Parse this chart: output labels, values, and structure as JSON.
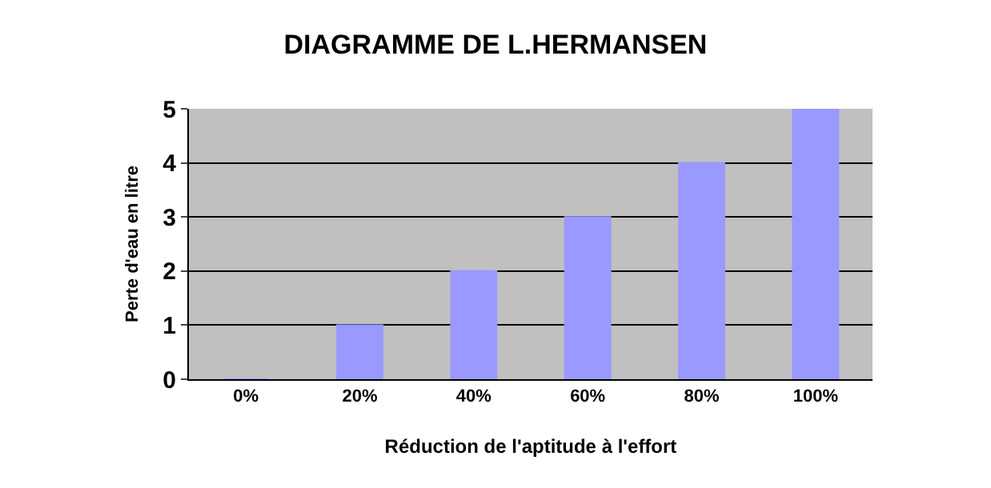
{
  "chart_data": {
    "type": "bar",
    "title": "DIAGRAMME DE L.HERMANSEN",
    "xlabel": "Réduction de l'aptitude à l'effort",
    "ylabel": "Perte d'eau en litre",
    "categories": [
      "0%",
      "20%",
      "40%",
      "60%",
      "80%",
      "100%"
    ],
    "values": [
      0,
      1,
      2,
      3,
      4,
      5
    ],
    "color": "#9999ff",
    "ylim": [
      0,
      5
    ],
    "yticks": [
      0,
      1,
      2,
      3,
      4,
      5
    ],
    "grid": "y"
  }
}
